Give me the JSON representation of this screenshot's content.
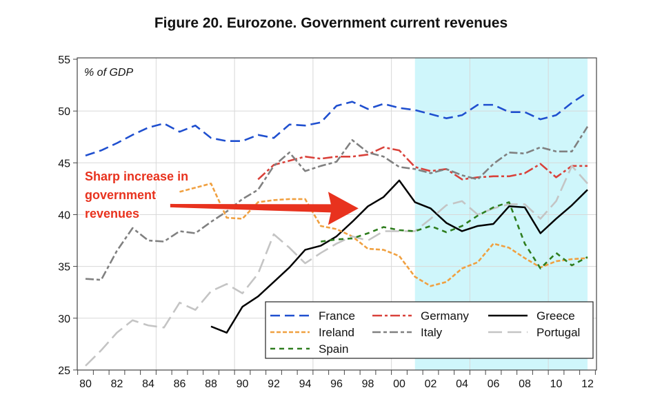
{
  "chart_data": {
    "type": "line",
    "title": "Figure 20. Eurozone. Government current revenues",
    "ylabel": "% of GDP",
    "xlabel": "",
    "xlim": [
      1980,
      2012
    ],
    "ylim": [
      25,
      55
    ],
    "x_ticks": [
      "80",
      "82",
      "84",
      "86",
      "88",
      "90",
      "92",
      "94",
      "96",
      "98",
      "00",
      "02",
      "04",
      "06",
      "08",
      "10",
      "12"
    ],
    "y_ticks": [
      "25",
      "30",
      "35",
      "40",
      "45",
      "50",
      "55"
    ],
    "grid": true,
    "legend_placement": "bottom-right",
    "shaded_range": [
      2001,
      2012
    ],
    "shaded_color": "#cff6fb",
    "annotation": {
      "lines": [
        "Sharp increase in",
        "government",
        "revenues"
      ],
      "color": "#e8321e",
      "arrow_from": [
        1985.4,
        40.9
      ],
      "arrow_to": [
        1997.4,
        40.6
      ]
    },
    "series": [
      {
        "name": "France",
        "color": "#1f4fcf",
        "dash": "14,7",
        "start": 1980,
        "values": [
          45.7,
          46.2,
          46.9,
          47.7,
          48.4,
          48.8,
          48.0,
          48.6,
          47.4,
          47.1,
          47.1,
          47.7,
          47.4,
          48.7,
          48.6,
          48.9,
          50.5,
          50.9,
          50.2,
          50.7,
          50.3,
          50.1,
          49.7,
          49.3,
          49.6,
          50.6,
          50.6,
          49.9,
          49.9,
          49.2,
          49.6,
          50.8,
          51.8
        ]
      },
      {
        "name": "Germany",
        "color": "#d9413a",
        "dash": "14,4,4,4",
        "start": 1991,
        "values": [
          43.4,
          44.8,
          45.2,
          45.6,
          45.4,
          45.6,
          45.6,
          45.8,
          46.5,
          46.2,
          44.6,
          44.2,
          44.4,
          43.4,
          43.6,
          43.7,
          43.7,
          44.0,
          44.9,
          43.6,
          44.7,
          44.7
        ]
      },
      {
        "name": "Greece",
        "color": "#000000",
        "dash": "",
        "start": 1988,
        "values": [
          29.2,
          28.6,
          31.1,
          32.1,
          33.5,
          34.9,
          36.6,
          37.0,
          37.9,
          39.3,
          40.8,
          41.7,
          43.3,
          41.2,
          40.6,
          39.2,
          38.4,
          38.9,
          39.1,
          40.8,
          40.7,
          38.2,
          39.6,
          40.9,
          42.4
        ]
      },
      {
        "name": "Ireland",
        "color": "#f0a040",
        "dash": "6,3",
        "start": 1986,
        "values": [
          42.2,
          42.6,
          43.0,
          39.7,
          39.6,
          41.2,
          41.4,
          41.5,
          41.5,
          38.9,
          38.6,
          37.9,
          36.7,
          36.6,
          36.0,
          34.0,
          33.1,
          33.5,
          34.8,
          35.4,
          37.2,
          36.8,
          35.8,
          34.9,
          35.5,
          35.7,
          35.8
        ]
      },
      {
        "name": "Italy",
        "color": "#808080",
        "dash": "12,4,5,4",
        "start": 1980,
        "values": [
          33.8,
          33.7,
          36.5,
          38.7,
          37.5,
          37.4,
          38.4,
          38.2,
          39.3,
          40.3,
          41.5,
          42.4,
          44.7,
          46.0,
          44.2,
          44.7,
          45.1,
          47.2,
          46.0,
          45.6,
          44.6,
          44.4,
          44.0,
          44.4,
          43.8,
          43.4,
          44.9,
          46.0,
          45.9,
          46.5,
          46.1,
          46.1,
          48.5
        ]
      },
      {
        "name": "Portugal",
        "color": "#c4c4c4",
        "dash": "20,8",
        "start": 1980,
        "values": [
          25.4,
          26.9,
          28.6,
          29.8,
          29.3,
          29.1,
          31.5,
          30.8,
          32.6,
          33.3,
          32.4,
          34.3,
          38.1,
          36.8,
          35.3,
          36.3,
          37.2,
          37.9,
          37.5,
          38.4,
          38.4,
          38.4,
          39.6,
          40.9,
          41.3,
          40.0,
          40.6,
          41.0,
          41.0,
          39.6,
          41.3,
          44.7,
          43.0
        ]
      },
      {
        "name": "Spain",
        "color": "#2e7d1e",
        "dash": "7,6",
        "start": 1995,
        "values": [
          37.4,
          37.6,
          37.7,
          38.2,
          38.8,
          38.5,
          38.4,
          38.9,
          38.3,
          38.9,
          39.9,
          40.7,
          41.2,
          37.2,
          34.8,
          36.3,
          35.1,
          35.9
        ]
      }
    ]
  }
}
